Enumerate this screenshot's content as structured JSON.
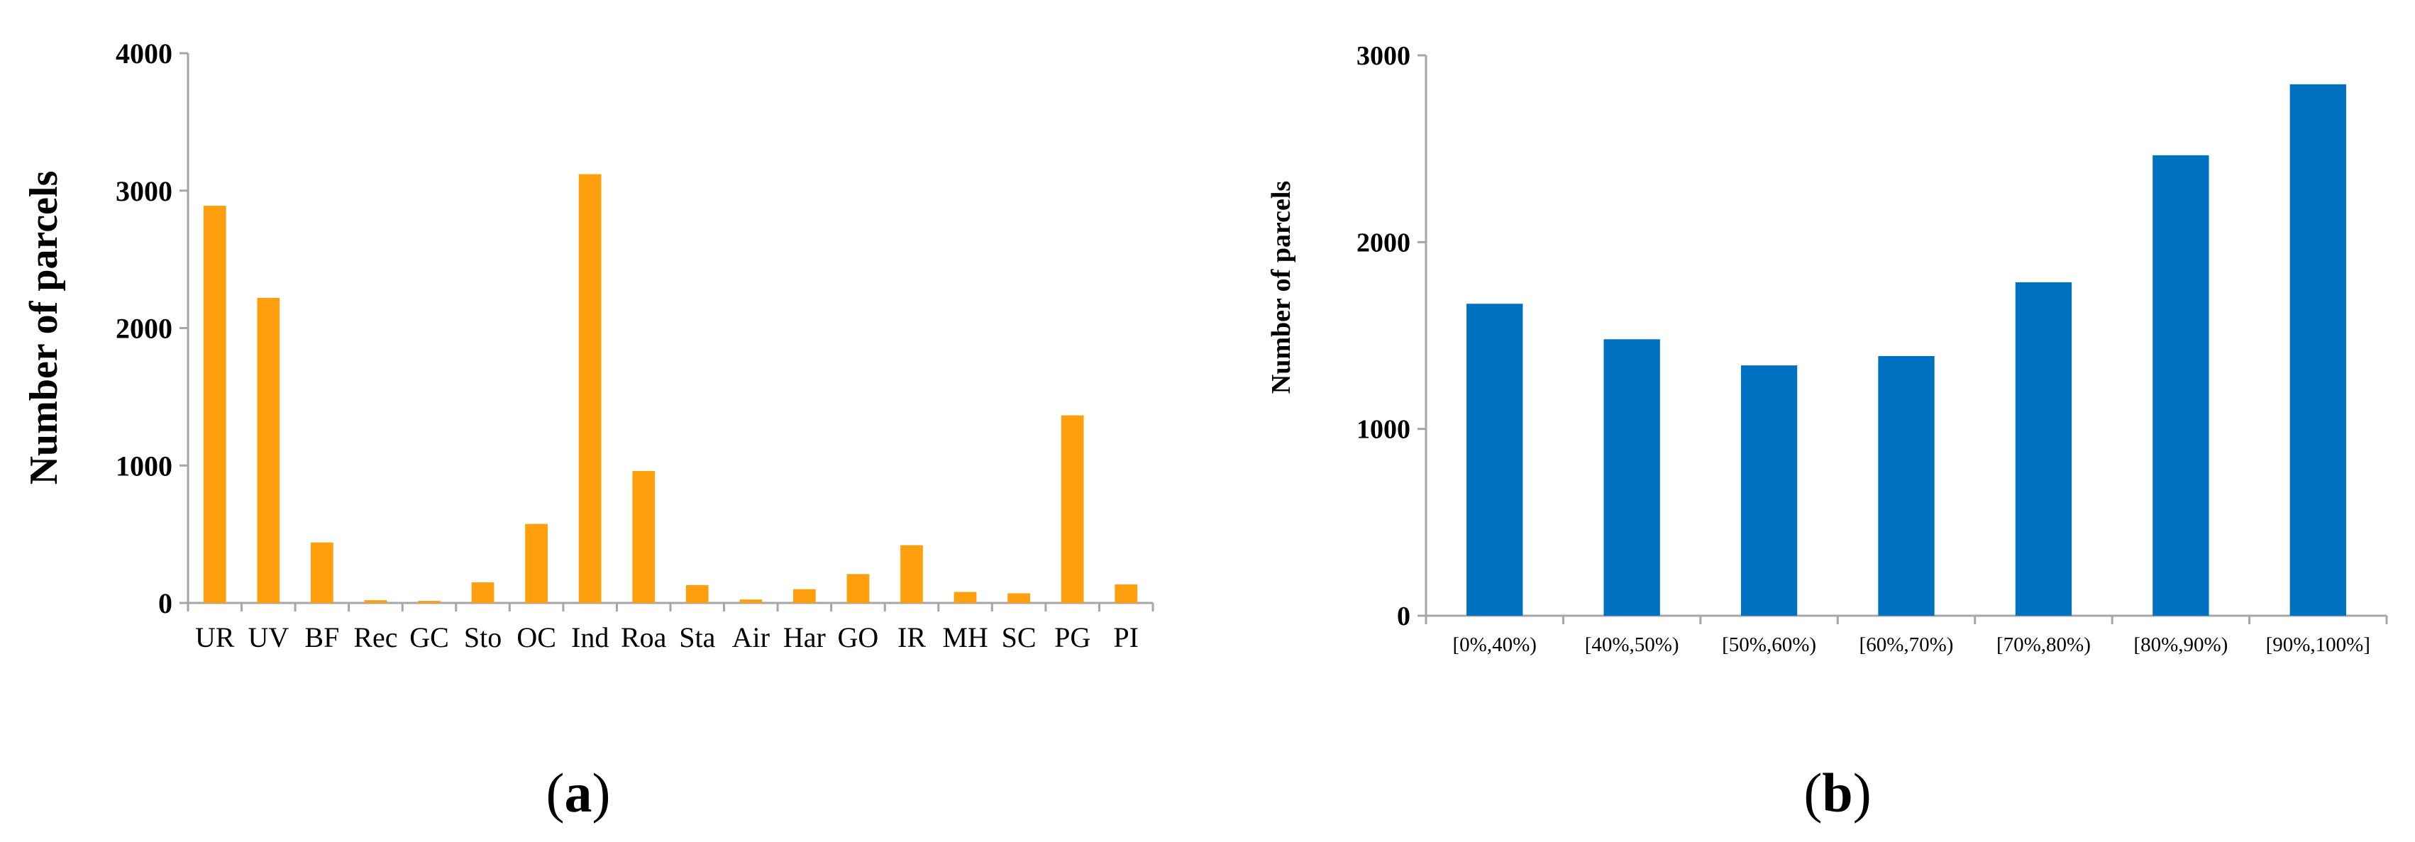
{
  "chart_data": [
    {
      "panel": "a",
      "type": "bar",
      "title": "",
      "xlabel": "",
      "ylabel": "Number of parcels",
      "ylim": [
        0,
        4000
      ],
      "yticks": [
        "0",
        "1000",
        "2000",
        "3000",
        "4000"
      ],
      "ytick_values": [
        0,
        1000,
        2000,
        3000,
        4000
      ],
      "categories": [
        "UR",
        "UV",
        "BF",
        "Rec",
        "GC",
        "Sto",
        "OC",
        "Ind",
        "Roa",
        "Sta",
        "Air",
        "Har",
        "GO",
        "IR",
        "MH",
        "SC",
        "PG",
        "PI"
      ],
      "values": [
        2890,
        2220,
        440,
        20,
        15,
        150,
        575,
        3120,
        960,
        130,
        25,
        100,
        210,
        420,
        80,
        70,
        1365,
        135
      ],
      "color": "#ff9f0e",
      "grid": false,
      "legend": "none"
    },
    {
      "panel": "b",
      "type": "bar",
      "title": "",
      "xlabel": "",
      "ylabel": "Number of parcels",
      "ylim": [
        0,
        3000
      ],
      "yticks": [
        "0",
        "1000",
        "2000",
        "3000"
      ],
      "ytick_values": [
        0,
        1000,
        2000,
        3000
      ],
      "categories": [
        "[0%,40%)",
        "[40%,50%)",
        "[50%,60%)",
        "[60%,70%)",
        "[70%,80%)",
        "[80%,90%)",
        "[90%,100%]"
      ],
      "values": [
        1670,
        1480,
        1340,
        1390,
        1785,
        2465,
        2845
      ],
      "color": "#0070c0",
      "grid": false,
      "legend": "none"
    }
  ],
  "panel_labels": {
    "a": {
      "open": "(",
      "letter": "a",
      "close": ")"
    },
    "b": {
      "open": "(",
      "letter": "b",
      "close": ")"
    }
  }
}
